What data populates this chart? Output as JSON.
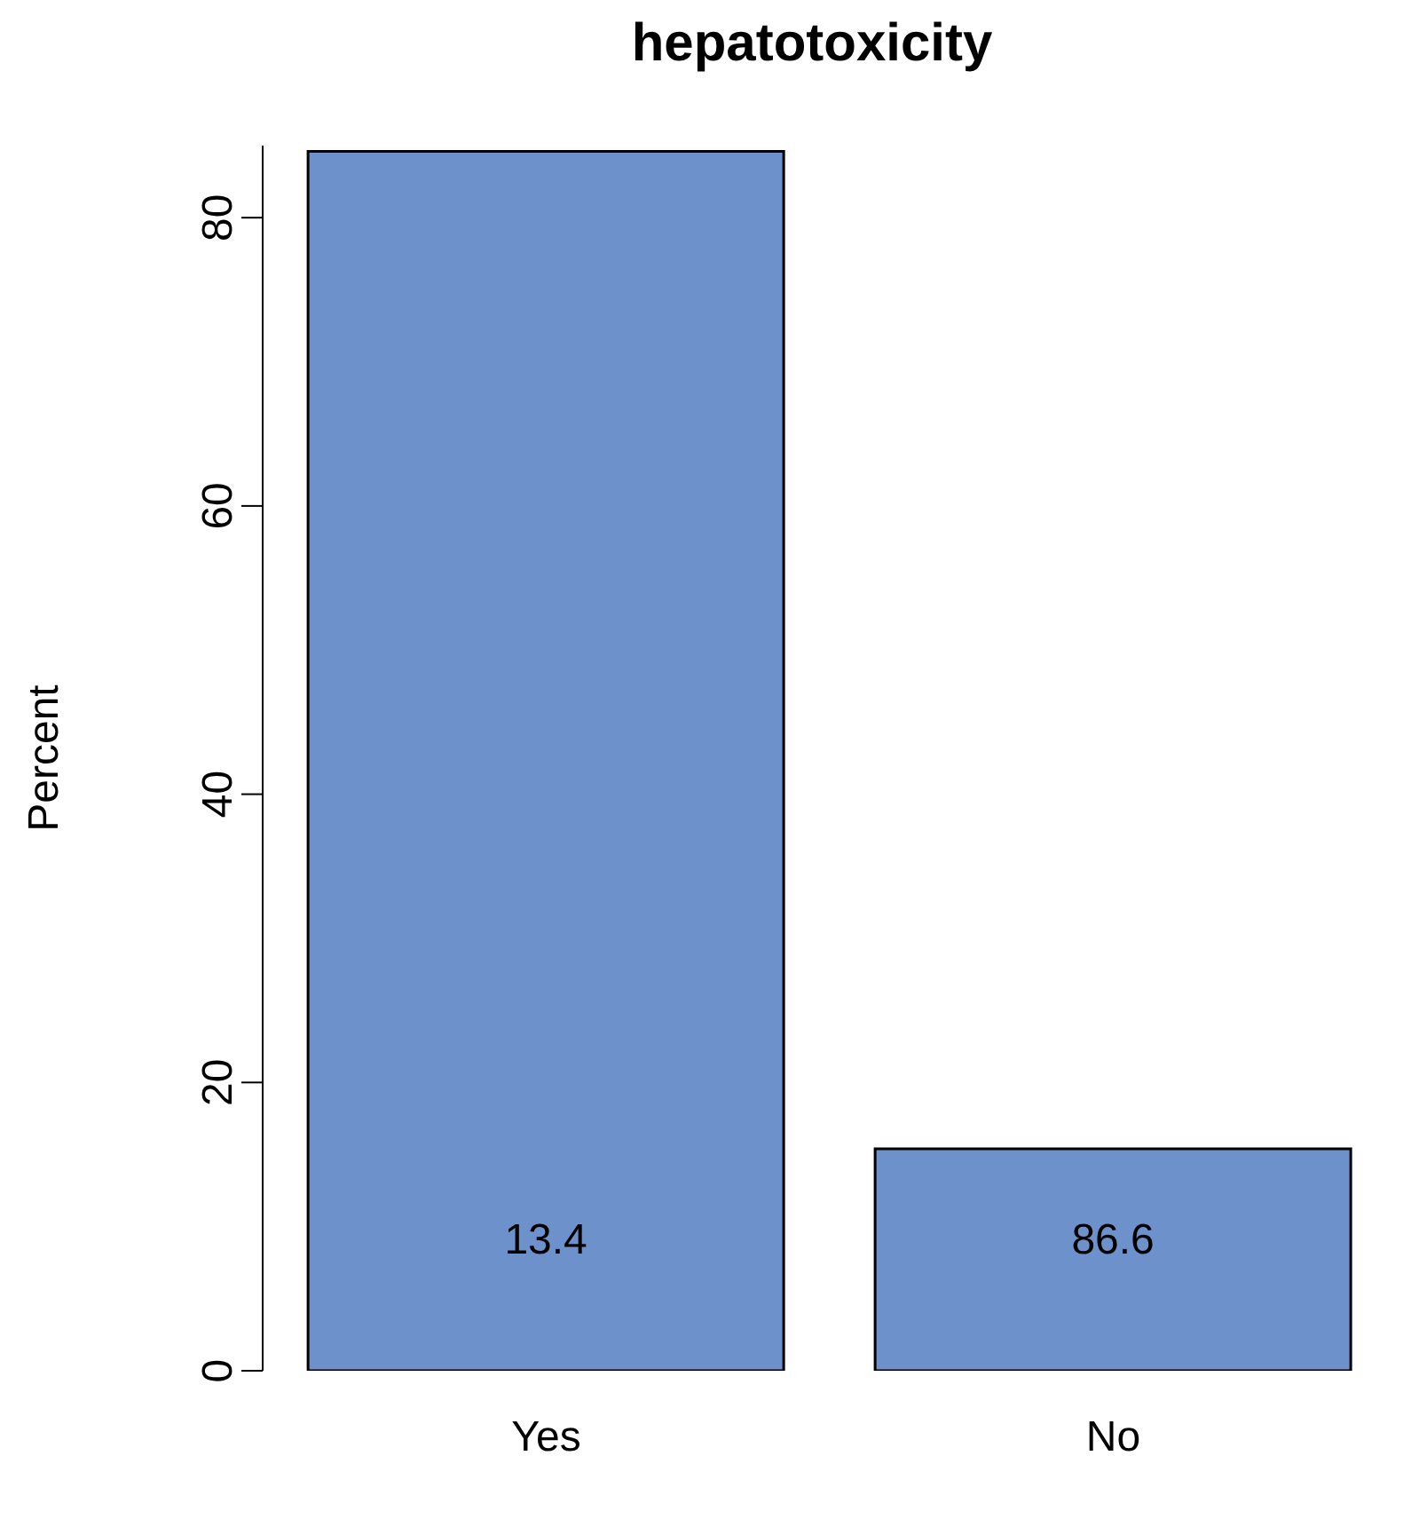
{
  "chart_data": {
    "type": "bar",
    "title": "hepatotoxicity",
    "ylabel": "Percent",
    "categories": [
      "Yes",
      "No"
    ],
    "values": [
      84.6,
      15.4
    ],
    "color": "#6d91cb",
    "ylim": [
      0,
      85
    ],
    "yticks": [
      0,
      20,
      40,
      60,
      80
    ],
    "grid": false,
    "legend": false,
    "annotations": [
      "13.4",
      "86.6"
    ]
  }
}
